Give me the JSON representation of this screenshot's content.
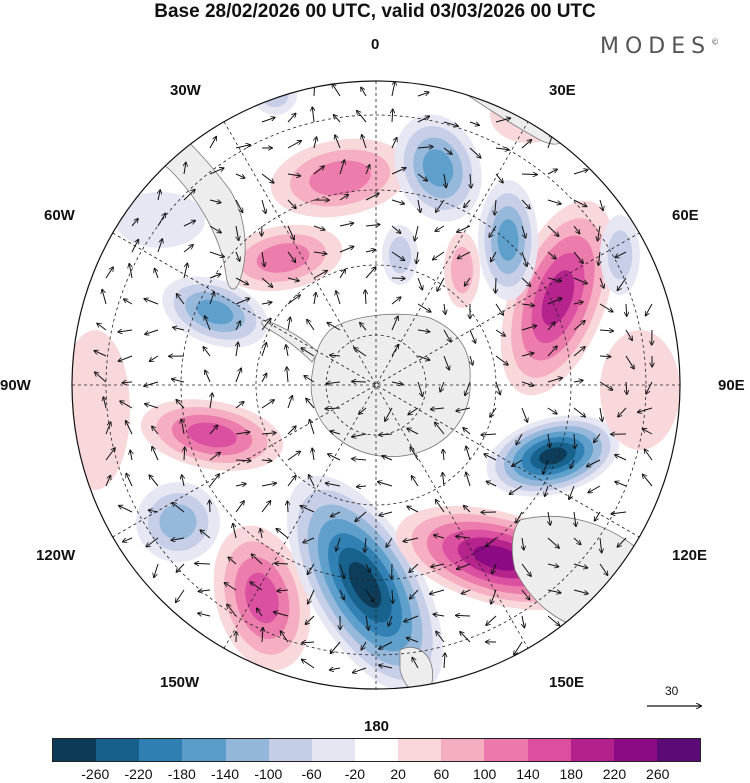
{
  "header": {
    "title": "Base 28/02/2026 00 UTC, valid 03/03/2026 00 UTC",
    "brand": "MODES",
    "brand_mark": "©"
  },
  "map": {
    "projection": "south-polar-stereographic",
    "longitude_labels": {
      "top": "0",
      "top_right": "30E",
      "upper_right": "60E",
      "right": "90E",
      "lower_right": "120E",
      "bottom_right": "150E",
      "bottom": "180",
      "bottom_left": "150W",
      "lower_left": "120W",
      "left": "90W",
      "upper_left": "60W",
      "top_left": "30W"
    },
    "reference_vector_value": "30",
    "colors": {
      "land": "#ededed",
      "grid": "#222222",
      "coast": "#777777"
    }
  },
  "colorbar": {
    "ticks": [
      "-260",
      "-220",
      "-180",
      "-140",
      "-100",
      "-60",
      "-20",
      "20",
      "60",
      "100",
      "140",
      "180",
      "220",
      "260"
    ],
    "colors": [
      "#0d3b57",
      "#17608c",
      "#2f7fb3",
      "#5b9dca",
      "#93b6da",
      "#c4cde6",
      "#e6e6f2",
      "#ffffff",
      "#f9d6da",
      "#f5adc0",
      "#eb79aa",
      "#db4ea0",
      "#b2218c",
      "#8a0b84",
      "#5c0b76"
    ]
  }
}
